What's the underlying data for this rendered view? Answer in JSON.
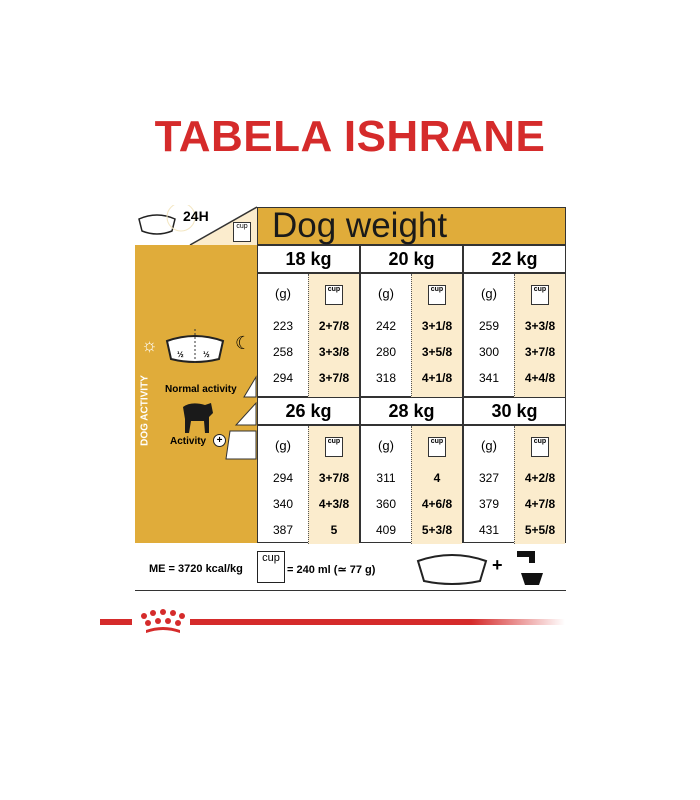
{
  "title": "TABELA ISHRANE",
  "header": {
    "label_24h": "24H",
    "cup_label": "cup",
    "dog_weight": "Dog weight"
  },
  "left_panel": {
    "vertical_label": "DOG ACTIVITY",
    "normal_activity": "Normal activity",
    "activity": "Activity",
    "half": "½"
  },
  "grams_label": "(g)",
  "weights": [
    {
      "kg": "18 kg",
      "rows": [
        [
          "223",
          "2+7/8"
        ],
        [
          "258",
          "3+3/8"
        ],
        [
          "294",
          "3+7/8"
        ]
      ]
    },
    {
      "kg": "20 kg",
      "rows": [
        [
          "242",
          "3+1/8"
        ],
        [
          "280",
          "3+5/8"
        ],
        [
          "318",
          "4+1/8"
        ]
      ]
    },
    {
      "kg": "22 kg",
      "rows": [
        [
          "259",
          "3+3/8"
        ],
        [
          "300",
          "3+7/8"
        ],
        [
          "341",
          "4+4/8"
        ]
      ]
    },
    {
      "kg": "26 kg",
      "rows": [
        [
          "294",
          "3+7/8"
        ],
        [
          "340",
          "4+3/8"
        ],
        [
          "387",
          "5"
        ]
      ]
    },
    {
      "kg": "28 kg",
      "rows": [
        [
          "311",
          "4"
        ],
        [
          "360",
          "4+6/8"
        ],
        [
          "409",
          "5+3/8"
        ]
      ]
    },
    {
      "kg": "30 kg",
      "rows": [
        [
          "327",
          "4+2/8"
        ],
        [
          "379",
          "4+7/8"
        ],
        [
          "431",
          "5+5/8"
        ]
      ]
    }
  ],
  "footer": {
    "me": "ME = 3720 kcal/kg",
    "cup": "cup",
    "cup_equiv": "= 240 ml (≃ 77 g)",
    "plus": "+"
  },
  "colors": {
    "title": "#d52b2b",
    "gold": "#e0ac3a",
    "cream": "#fbeccd"
  }
}
